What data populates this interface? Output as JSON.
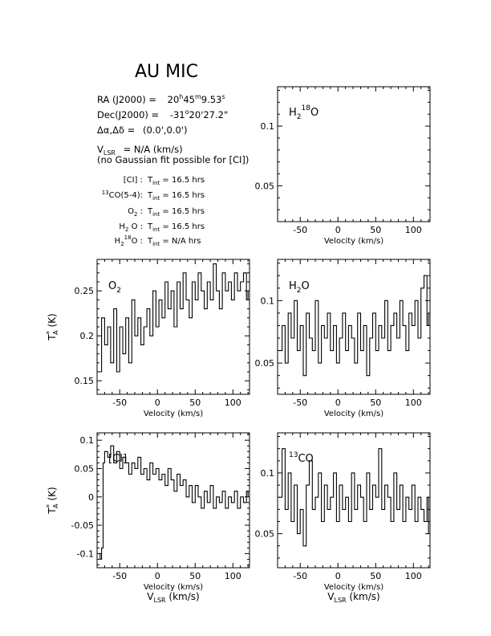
{
  "header": {
    "title": "AU MIC",
    "ra_label": "RA (J2000) =",
    "ra_value": {
      "h": "20",
      "m": "45",
      "s": "9.53"
    },
    "dec_label": "Dec(J2000) =",
    "dec_value": {
      "d": "-31",
      "m": "20",
      "s": "27.2"
    },
    "offset_label": "Δα,Δδ =",
    "offset_value": "(0.0',0.0')",
    "vlsr_label": "V",
    "vlsr_sub": "LSR",
    "vlsr_value": "= N/A  (km/s)",
    "note": "(no Gaussian fit possible for [CI])",
    "integrations": [
      {
        "label": "[CI] :",
        "value": "16.5 hrs"
      },
      {
        "label": "CO(5-4):",
        "prefix_sup": "13",
        "value": "16.5 hrs"
      },
      {
        "label": "O :",
        "label_sub": "2",
        "value": "16.5 hrs"
      },
      {
        "label": "H O :",
        "label_sub": "2",
        "value": "16.5 hrs"
      },
      {
        "label": "H O :",
        "label_sub": "2",
        "label_sup": "18",
        "value": "N/A hrs"
      }
    ],
    "tint_label": "T",
    "tint_sub": "int"
  },
  "axis_common": {
    "xlabel": "Velocity (km/s)",
    "xlabel2": "V",
    "xlabel2_sub": "LSR",
    "xlabel2_unit": "(km/s)",
    "ylabel": "T",
    "ylabel_sup": "*",
    "ylabel_sub": "A",
    "ylabel_unit": "(K)"
  },
  "chart_data": [
    {
      "id": "h218o",
      "type": "line",
      "label": "H O",
      "label_sub": "2",
      "label_sup": "18",
      "xlim": [
        -80,
        122
      ],
      "ylim": [
        0.02,
        0.133
      ],
      "xticks": [
        -50,
        0,
        50,
        100
      ],
      "yticks": [
        0.05,
        0.1
      ],
      "show_ylabel": false,
      "show_xlabel2": false,
      "series": []
    },
    {
      "id": "o2",
      "type": "line",
      "label": "O",
      "label_sub": "2",
      "xlim": [
        -80,
        122
      ],
      "ylim": [
        0.135,
        0.285
      ],
      "xticks": [
        -50,
        0,
        50,
        100
      ],
      "yticks": [
        0.15,
        0.2,
        0.25
      ],
      "show_ylabel": true,
      "show_xlabel2": false,
      "series": [
        {
          "x": [
            -78,
            -74,
            -70,
            -66,
            -62,
            -58,
            -54,
            -50,
            -46,
            -42,
            -38,
            -34,
            -30,
            -26,
            -22,
            -18,
            -14,
            -10,
            -6,
            -2,
            2,
            6,
            10,
            14,
            18,
            22,
            26,
            30,
            34,
            38,
            42,
            46,
            50,
            54,
            58,
            62,
            66,
            70,
            74,
            78,
            82,
            86,
            90,
            94,
            98,
            102,
            106,
            110,
            114,
            118,
            120
          ],
          "y": [
            0.16,
            0.22,
            0.19,
            0.21,
            0.17,
            0.23,
            0.16,
            0.21,
            0.18,
            0.22,
            0.17,
            0.24,
            0.2,
            0.22,
            0.19,
            0.21,
            0.23,
            0.2,
            0.25,
            0.21,
            0.24,
            0.22,
            0.26,
            0.23,
            0.25,
            0.21,
            0.26,
            0.23,
            0.27,
            0.24,
            0.22,
            0.26,
            0.24,
            0.27,
            0.25,
            0.23,
            0.26,
            0.24,
            0.28,
            0.25,
            0.23,
            0.27,
            0.25,
            0.26,
            0.24,
            0.27,
            0.25,
            0.26,
            0.27,
            0.24,
            0.25
          ]
        }
      ]
    },
    {
      "id": "h2o",
      "type": "line",
      "label": "H O",
      "label_sub": "2",
      "xlim": [
        -80,
        122
      ],
      "ylim": [
        0.025,
        0.133
      ],
      "xticks": [
        -50,
        0,
        50,
        100
      ],
      "yticks": [
        0.05,
        0.1
      ],
      "show_ylabel": false,
      "show_xlabel2": false,
      "series": [
        {
          "x": [
            -78,
            -74,
            -70,
            -66,
            -62,
            -58,
            -54,
            -50,
            -46,
            -42,
            -38,
            -34,
            -30,
            -26,
            -22,
            -18,
            -14,
            -10,
            -6,
            -2,
            2,
            6,
            10,
            14,
            18,
            22,
            26,
            30,
            34,
            38,
            42,
            46,
            50,
            54,
            58,
            62,
            66,
            70,
            74,
            78,
            82,
            86,
            90,
            94,
            98,
            102,
            106,
            110,
            114,
            118,
            120
          ],
          "y": [
            0.06,
            0.08,
            0.05,
            0.09,
            0.07,
            0.1,
            0.06,
            0.08,
            0.04,
            0.09,
            0.07,
            0.06,
            0.1,
            0.05,
            0.08,
            0.07,
            0.09,
            0.06,
            0.08,
            0.05,
            0.07,
            0.09,
            0.06,
            0.08,
            0.07,
            0.05,
            0.09,
            0.06,
            0.08,
            0.04,
            0.07,
            0.09,
            0.06,
            0.08,
            0.07,
            0.1,
            0.06,
            0.08,
            0.09,
            0.07,
            0.1,
            0.08,
            0.06,
            0.09,
            0.08,
            0.1,
            0.07,
            0.11,
            0.12,
            0.08,
            0.09
          ]
        }
      ]
    },
    {
      "id": "ci",
      "type": "line",
      "label": "[CI]",
      "xlim": [
        -80,
        122
      ],
      "ylim": [
        -0.125,
        0.113
      ],
      "xticks": [
        -50,
        0,
        50,
        100
      ],
      "yticks": [
        -0.1,
        -0.05,
        0,
        0.05,
        0.1
      ],
      "show_ylabel": true,
      "show_xlabel2": true,
      "series": [
        {
          "x": [
            -78,
            -76,
            -74,
            -72,
            -70,
            -66,
            -62,
            -58,
            -54,
            -50,
            -46,
            -42,
            -38,
            -34,
            -30,
            -26,
            -22,
            -18,
            -14,
            -10,
            -6,
            -2,
            2,
            6,
            10,
            14,
            18,
            22,
            26,
            30,
            34,
            38,
            42,
            46,
            50,
            54,
            58,
            62,
            66,
            70,
            74,
            78,
            82,
            86,
            90,
            94,
            98,
            102,
            106,
            110,
            114,
            118,
            120
          ],
          "y": [
            -0.1,
            -0.11,
            -0.09,
            0.06,
            0.08,
            0.07,
            0.09,
            0.06,
            0.08,
            0.05,
            0.07,
            0.06,
            0.04,
            0.06,
            0.05,
            0.07,
            0.04,
            0.05,
            0.03,
            0.06,
            0.04,
            0.05,
            0.03,
            0.04,
            0.02,
            0.05,
            0.03,
            0.01,
            0.04,
            0.02,
            0.03,
            0.0,
            0.02,
            -0.01,
            0.02,
            0.0,
            -0.02,
            0.01,
            -0.01,
            0.02,
            -0.02,
            0.0,
            -0.01,
            0.01,
            -0.02,
            0.0,
            -0.01,
            0.01,
            -0.02,
            0.0,
            -0.01,
            0.01,
            0.0
          ]
        }
      ]
    },
    {
      "id": "13co",
      "type": "line",
      "label": "CO",
      "label_sup": "13",
      "xlim": [
        -80,
        122
      ],
      "ylim": [
        0.022,
        0.133
      ],
      "xticks": [
        -50,
        0,
        50,
        100
      ],
      "yticks": [
        0.05,
        0.1
      ],
      "show_ylabel": false,
      "show_xlabel2": true,
      "series": [
        {
          "x": [
            -78,
            -74,
            -70,
            -66,
            -62,
            -58,
            -54,
            -50,
            -46,
            -42,
            -38,
            -34,
            -30,
            -26,
            -22,
            -18,
            -14,
            -10,
            -6,
            -2,
            2,
            6,
            10,
            14,
            18,
            22,
            26,
            30,
            34,
            38,
            42,
            46,
            50,
            54,
            58,
            62,
            66,
            70,
            74,
            78,
            82,
            86,
            90,
            94,
            98,
            102,
            106,
            110,
            114,
            118,
            120
          ],
          "y": [
            0.08,
            0.12,
            0.07,
            0.1,
            0.06,
            0.09,
            0.05,
            0.07,
            0.04,
            0.09,
            0.11,
            0.07,
            0.08,
            0.1,
            0.06,
            0.09,
            0.07,
            0.08,
            0.1,
            0.06,
            0.09,
            0.07,
            0.08,
            0.06,
            0.1,
            0.07,
            0.09,
            0.08,
            0.06,
            0.1,
            0.07,
            0.09,
            0.08,
            0.12,
            0.07,
            0.09,
            0.08,
            0.06,
            0.1,
            0.07,
            0.09,
            0.06,
            0.08,
            0.07,
            0.09,
            0.06,
            0.08,
            0.07,
            0.06,
            0.08,
            0.05
          ]
        }
      ]
    }
  ]
}
